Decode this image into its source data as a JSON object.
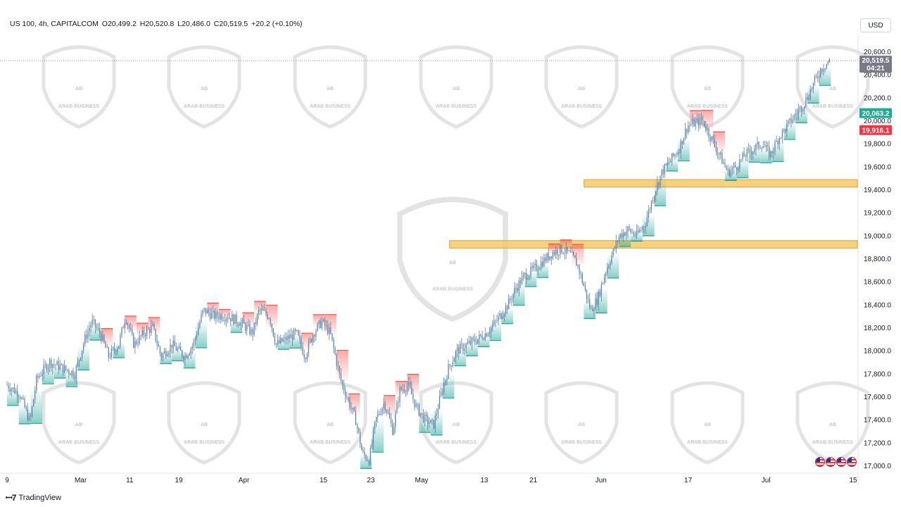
{
  "header": {
    "symbol": "US 100, 4h, CAPITALCOM",
    "open": "O20,499.2",
    "high": "H20,520.8",
    "low": "L20,486.0",
    "close": "C20,519.5",
    "change": "+20.2 (+0.10%)"
  },
  "currency_button": "USD",
  "brand": "TradingView",
  "watermark_text": "ARAB BUSINESS",
  "price_tags": {
    "current_price": "20,519.5",
    "countdown": "04:21",
    "green_level": "20,063.2",
    "red_level": "19,916.1"
  },
  "colors": {
    "current_tag": "#787b86",
    "green_tag": "#22ab94",
    "red_tag": "#f23645",
    "zone_fill": "#f5c96b",
    "zone_border": "#e0a030",
    "cloud_green": "#26a69a",
    "cloud_red": "#ef5350",
    "candle": "#5b7fa6"
  },
  "chart_data": {
    "type": "candlestick",
    "title": "US 100, 4h, CAPITALCOM",
    "y_ticks": [
      "20,600.0",
      "20,400.0",
      "20,200.0",
      "20,000.0",
      "19,800.0",
      "19,600.0",
      "19,400.0",
      "19,200.0",
      "19,000.0",
      "18,800.0",
      "18,600.0",
      "18,400.0",
      "18,200.0",
      "18,000.0",
      "17,800.0",
      "17,600.0",
      "17,400.0",
      "17,200.0",
      "17,000.0"
    ],
    "y_tick_values": [
      20600,
      20400,
      20200,
      20000,
      19800,
      19600,
      19400,
      19200,
      19000,
      18800,
      18600,
      18400,
      18200,
      18000,
      17800,
      17600,
      17400,
      17200,
      17000
    ],
    "ylim": [
      16950,
      20700
    ],
    "x_ticks": [
      "9",
      "Mar",
      "11",
      "19",
      "Apr",
      "15",
      "23",
      "May",
      "13",
      "21",
      "Jun",
      "17",
      "Jul",
      "15"
    ],
    "x_tick_positions": [
      0.0,
      0.087,
      0.145,
      0.203,
      0.28,
      0.374,
      0.43,
      0.49,
      0.564,
      0.622,
      0.702,
      0.805,
      0.897,
      1.0
    ],
    "xlim": [
      0,
      1
    ],
    "zones": [
      {
        "name": "resistance-1",
        "y_from": 19420,
        "y_to": 19485,
        "x_from": 0.682
      },
      {
        "name": "resistance-2",
        "y_from": 18890,
        "y_to": 18955,
        "x_from": 0.523
      }
    ],
    "levels": {
      "current": 20519.5,
      "green": 20063.2,
      "red": 19916.1
    },
    "price_path": [
      [
        0.0,
        17700
      ],
      [
        0.015,
        17620
      ],
      [
        0.027,
        17380
      ],
      [
        0.035,
        17750
      ],
      [
        0.05,
        17900
      ],
      [
        0.065,
        17850
      ],
      [
        0.08,
        17800
      ],
      [
        0.092,
        18100
      ],
      [
        0.1,
        18250
      ],
      [
        0.11,
        18150
      ],
      [
        0.12,
        17950
      ],
      [
        0.132,
        18050
      ],
      [
        0.14,
        18300
      ],
      [
        0.15,
        18050
      ],
      [
        0.162,
        18150
      ],
      [
        0.172,
        18200
      ],
      [
        0.182,
        17950
      ],
      [
        0.195,
        18050
      ],
      [
        0.21,
        17950
      ],
      [
        0.22,
        18050
      ],
      [
        0.232,
        18350
      ],
      [
        0.245,
        18300
      ],
      [
        0.26,
        18300
      ],
      [
        0.275,
        18250
      ],
      [
        0.29,
        18150
      ],
      [
        0.298,
        18350
      ],
      [
        0.31,
        18300
      ],
      [
        0.318,
        18050
      ],
      [
        0.33,
        18100
      ],
      [
        0.342,
        18150
      ],
      [
        0.352,
        17950
      ],
      [
        0.362,
        18150
      ],
      [
        0.372,
        18250
      ],
      [
        0.382,
        18150
      ],
      [
        0.394,
        17750
      ],
      [
        0.404,
        17550
      ],
      [
        0.412,
        17400
      ],
      [
        0.42,
        17100
      ],
      [
        0.428,
        17050
      ],
      [
        0.436,
        17400
      ],
      [
        0.446,
        17550
      ],
      [
        0.456,
        17300
      ],
      [
        0.464,
        17650
      ],
      [
        0.474,
        17700
      ],
      [
        0.484,
        17500
      ],
      [
        0.494,
        17400
      ],
      [
        0.504,
        17350
      ],
      [
        0.514,
        17650
      ],
      [
        0.522,
        17850
      ],
      [
        0.532,
        18000
      ],
      [
        0.544,
        18050
      ],
      [
        0.556,
        18100
      ],
      [
        0.566,
        18150
      ],
      [
        0.578,
        18250
      ],
      [
        0.592,
        18400
      ],
      [
        0.602,
        18550
      ],
      [
        0.612,
        18650
      ],
      [
        0.622,
        18700
      ],
      [
        0.634,
        18780
      ],
      [
        0.645,
        18850
      ],
      [
        0.656,
        18880
      ],
      [
        0.666,
        18830
      ],
      [
        0.674,
        18750
      ],
      [
        0.682,
        18550
      ],
      [
        0.69,
        18350
      ],
      [
        0.698,
        18450
      ],
      [
        0.708,
        18700
      ],
      [
        0.716,
        18850
      ],
      [
        0.724,
        19000
      ],
      [
        0.734,
        19050
      ],
      [
        0.744,
        19000
      ],
      [
        0.754,
        19100
      ],
      [
        0.764,
        19350
      ],
      [
        0.774,
        19550
      ],
      [
        0.784,
        19650
      ],
      [
        0.794,
        19750
      ],
      [
        0.804,
        19950
      ],
      [
        0.814,
        19980
      ],
      [
        0.822,
        20000
      ],
      [
        0.832,
        19850
      ],
      [
        0.842,
        19700
      ],
      [
        0.852,
        19550
      ],
      [
        0.862,
        19600
      ],
      [
        0.872,
        19700
      ],
      [
        0.882,
        19750
      ],
      [
        0.892,
        19800
      ],
      [
        0.902,
        19700
      ],
      [
        0.912,
        19850
      ],
      [
        0.922,
        19950
      ],
      [
        0.932,
        20050
      ],
      [
        0.942,
        20150
      ],
      [
        0.952,
        20300
      ],
      [
        0.962,
        20450
      ],
      [
        0.972,
        20519.5
      ]
    ]
  }
}
